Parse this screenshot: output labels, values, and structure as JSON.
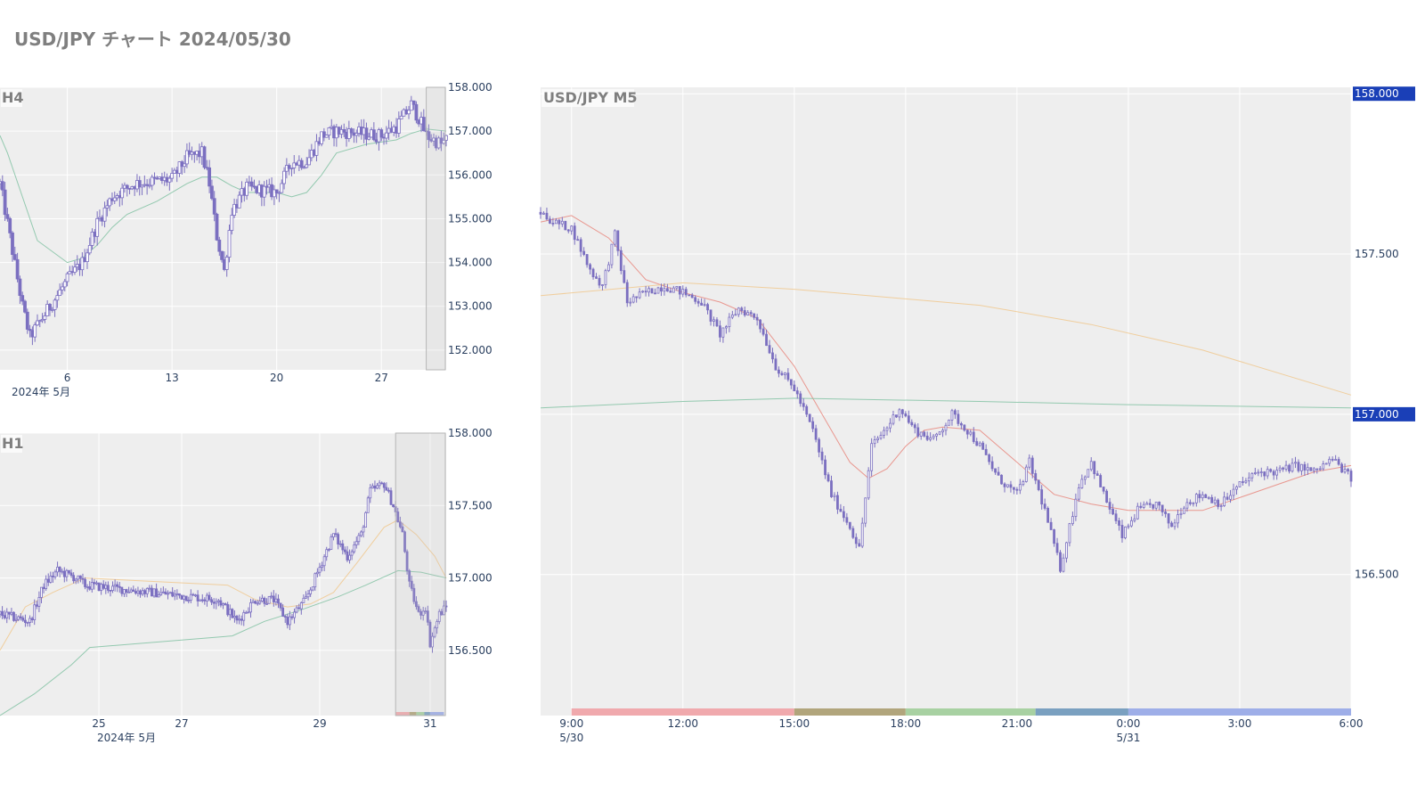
{
  "page": {
    "title": "USD/JPY チャート 2024/05/30"
  },
  "colors": {
    "candle": "#7b6fc0",
    "ma_short": "#e7877e",
    "ma_mid": "#f0c88e",
    "ma_long": "#83c2a3",
    "plot_bg": "#eeeeee",
    "grid": "#ffffff",
    "tick_text": "#2a3f5f",
    "price_tag": "#1a3fb7",
    "sessions": [
      "#f0a9ad",
      "#b1a57c",
      "#a8d1a2",
      "#7aa0c0",
      "#9eaee8"
    ]
  },
  "chart_data": [
    {
      "type": "candlestick",
      "panel_label": "H4",
      "x_range": [
        "2024-05-01T12:00",
        "2024-05-31T08:00"
      ],
      "x_ticks": [
        "6",
        "13",
        "20",
        "27"
      ],
      "x_sublabel": "2024年 5月",
      "y_range": [
        151.55,
        158.0
      ],
      "y_ticks": [
        "152.000",
        "153.000",
        "154.000",
        "155.000",
        "156.000",
        "157.000",
        "158.000"
      ],
      "highlight_range": [
        "2024-05-30T00:00",
        "2024-05-31T08:00"
      ],
      "close_path": [
        [
          "2024-05-01T12:00",
          155.8
        ],
        [
          "2024-05-02T00:00",
          154.9
        ],
        [
          "2024-05-03T00:00",
          153.0
        ],
        [
          "2024-05-03T12:00",
          152.3
        ],
        [
          "2024-05-06T00:00",
          153.6
        ],
        [
          "2024-05-07T00:00",
          154.0
        ],
        [
          "2024-05-08T00:00",
          154.9
        ],
        [
          "2024-05-09T00:00",
          155.5
        ],
        [
          "2024-05-10T12:00",
          155.8
        ],
        [
          "2024-05-13T00:00",
          155.9
        ],
        [
          "2024-05-14T00:00",
          156.4
        ],
        [
          "2024-05-15T00:00",
          156.5
        ],
        [
          "2024-05-15T12:00",
          155.8
        ],
        [
          "2024-05-16T00:00",
          154.6
        ],
        [
          "2024-05-16T12:00",
          153.8
        ],
        [
          "2024-05-17T00:00",
          155.2
        ],
        [
          "2024-05-18T00:00",
          155.7
        ],
        [
          "2024-05-20T00:00",
          155.6
        ],
        [
          "2024-05-21T00:00",
          156.3
        ],
        [
          "2024-05-22T00:00",
          156.3
        ],
        [
          "2024-05-23T00:00",
          156.9
        ],
        [
          "2024-05-24T00:00",
          157.0
        ],
        [
          "2024-05-27T00:00",
          156.9
        ],
        [
          "2024-05-28T00:00",
          157.1
        ],
        [
          "2024-05-29T00:00",
          157.6
        ],
        [
          "2024-05-29T12:00",
          157.3
        ],
        [
          "2024-05-30T00:00",
          156.9
        ],
        [
          "2024-05-31T00:00",
          156.7
        ],
        [
          "2024-05-31T08:00",
          156.8
        ]
      ],
      "ma_lines": [
        {
          "color_key": "ma_long",
          "points": [
            [
              "2024-05-01T12:00",
              156.9
            ],
            [
              "2024-05-02T00:00",
              156.5
            ],
            [
              "2024-05-03T00:00",
              155.5
            ],
            [
              "2024-05-04T00:00",
              154.5
            ],
            [
              "2024-05-06T00:00",
              154.0
            ],
            [
              "2024-05-07T00:00",
              154.1
            ],
            [
              "2024-05-08T00:00",
              154.4
            ],
            [
              "2024-05-09T00:00",
              154.8
            ],
            [
              "2024-05-10T00:00",
              155.1
            ],
            [
              "2024-05-12T00:00",
              155.4
            ],
            [
              "2024-05-14T00:00",
              155.8
            ],
            [
              "2024-05-15T00:00",
              155.95
            ],
            [
              "2024-05-16T00:00",
              155.95
            ],
            [
              "2024-05-17T00:00",
              155.75
            ],
            [
              "2024-05-18T00:00",
              155.6
            ],
            [
              "2024-05-20T00:00",
              155.6
            ],
            [
              "2024-05-21T00:00",
              155.5
            ],
            [
              "2024-05-22T00:00",
              155.6
            ],
            [
              "2024-05-23T00:00",
              156.0
            ],
            [
              "2024-05-24T00:00",
              156.5
            ],
            [
              "2024-05-26T00:00",
              156.7
            ],
            [
              "2024-05-28T00:00",
              156.8
            ],
            [
              "2024-05-29T00:00",
              156.95
            ],
            [
              "2024-05-30T00:00",
              157.05
            ],
            [
              "2024-05-31T08:00",
              157.0
            ]
          ]
        }
      ]
    },
    {
      "type": "candlestick",
      "panel_label": "H1",
      "x_range": [
        "2024-05-23T05:00",
        "2024-05-31T07:00"
      ],
      "x_ticks": [
        "25",
        "27",
        "29",
        "31"
      ],
      "x_sublabel": "2024年 5月",
      "y_range": [
        156.05,
        158.0
      ],
      "y_ticks": [
        "156.500",
        "157.000",
        "157.500",
        "158.000"
      ],
      "highlight_range": [
        "2024-05-30T09:00",
        "2024-05-31T07:00"
      ],
      "close_path": [
        [
          "2024-05-23T05:00",
          156.75
        ],
        [
          "2024-05-23T18:00",
          156.7
        ],
        [
          "2024-05-24T00:00",
          156.95
        ],
        [
          "2024-05-24T06:00",
          157.05
        ],
        [
          "2024-05-24T14:00",
          157.0
        ],
        [
          "2024-05-24T18:00",
          156.95
        ],
        [
          "2024-05-27T04:00",
          156.85
        ],
        [
          "2024-05-27T12:00",
          156.7
        ],
        [
          "2024-05-27T20:00",
          156.85
        ],
        [
          "2024-05-28T04:00",
          156.85
        ],
        [
          "2024-05-28T10:00",
          156.7
        ],
        [
          "2024-05-28T18:00",
          156.85
        ],
        [
          "2024-05-28T22:00",
          157.0
        ],
        [
          "2024-05-29T06:00",
          157.3
        ],
        [
          "2024-05-29T12:00",
          157.15
        ],
        [
          "2024-05-29T18:00",
          157.3
        ],
        [
          "2024-05-29T22:00",
          157.6
        ],
        [
          "2024-05-30T04:00",
          157.65
        ],
        [
          "2024-05-30T08:00",
          157.5
        ],
        [
          "2024-05-30T12:00",
          157.3
        ],
        [
          "2024-05-30T15:00",
          156.95
        ],
        [
          "2024-05-30T19:00",
          156.75
        ],
        [
          "2024-05-30T22:00",
          156.8
        ],
        [
          "2024-05-31T00:00",
          156.55
        ],
        [
          "2024-05-31T04:00",
          156.75
        ],
        [
          "2024-05-31T07:00",
          156.8
        ]
      ],
      "ma_lines": [
        {
          "color_key": "ma_mid",
          "points": [
            [
              "2024-05-23T05:00",
              156.5
            ],
            [
              "2024-05-23T16:00",
              156.8
            ],
            [
              "2024-05-24T04:00",
              156.9
            ],
            [
              "2024-05-24T18:00",
              157.0
            ],
            [
              "2024-05-27T08:00",
              156.95
            ],
            [
              "2024-05-27T20:00",
              156.85
            ],
            [
              "2024-05-28T10:00",
              156.8
            ],
            [
              "2024-05-28T20:00",
              156.82
            ],
            [
              "2024-05-29T06:00",
              156.9
            ],
            [
              "2024-05-29T16:00",
              157.1
            ],
            [
              "2024-05-30T04:00",
              157.35
            ],
            [
              "2024-05-30T10:00",
              157.4
            ],
            [
              "2024-05-30T18:00",
              157.3
            ],
            [
              "2024-05-31T02:00",
              157.15
            ],
            [
              "2024-05-31T07:00",
              157.0
            ]
          ]
        },
        {
          "color_key": "ma_long",
          "points": [
            [
              "2024-05-23T05:00",
              156.05
            ],
            [
              "2024-05-23T20:00",
              156.2
            ],
            [
              "2024-05-24T12:00",
              156.4
            ],
            [
              "2024-05-24T20:00",
              156.52
            ],
            [
              "2024-05-27T10:00",
              156.6
            ],
            [
              "2024-05-28T00:00",
              156.7
            ],
            [
              "2024-05-28T16:00",
              156.78
            ],
            [
              "2024-05-29T08:00",
              156.87
            ],
            [
              "2024-05-29T20:00",
              156.95
            ],
            [
              "2024-05-30T10:00",
              157.05
            ],
            [
              "2024-05-30T20:00",
              157.04
            ],
            [
              "2024-05-31T07:00",
              157.0
            ]
          ]
        }
      ],
      "session_range": [
        "2024-05-30T09:00",
        "2024-05-31T06:00"
      ]
    },
    {
      "type": "candlestick",
      "panel_label": "USD/JPY M5",
      "x_range": [
        "2024-05-30T08:10",
        "2024-05-31T06:00"
      ],
      "x_ticks": [
        "9:00",
        "12:00",
        "15:00",
        "18:00",
        "21:00",
        "0:00",
        "3:00",
        "6:00"
      ],
      "x_subticks": [
        "5/30",
        "5/31"
      ],
      "y_range": [
        156.06,
        158.02
      ],
      "y_ticks": [
        "156.500",
        "157.000",
        "157.500",
        "158.000"
      ],
      "price_tags": [
        "158.000",
        "157.000"
      ],
      "close_path": [
        [
          "2024-05-30T08:10",
          157.63
        ],
        [
          "2024-05-30T08:30",
          157.6
        ],
        [
          "2024-05-30T09:00",
          157.58
        ],
        [
          "2024-05-30T09:30",
          157.45
        ],
        [
          "2024-05-30T09:50",
          157.4
        ],
        [
          "2024-05-30T10:10",
          157.56
        ],
        [
          "2024-05-30T10:30",
          157.35
        ],
        [
          "2024-05-30T11:00",
          157.38
        ],
        [
          "2024-05-30T11:30",
          157.4
        ],
        [
          "2024-05-30T12:00",
          157.38
        ],
        [
          "2024-05-30T12:30",
          157.35
        ],
        [
          "2024-05-30T13:00",
          157.25
        ],
        [
          "2024-05-30T13:30",
          157.33
        ],
        [
          "2024-05-30T14:00",
          157.3
        ],
        [
          "2024-05-30T14:30",
          157.15
        ],
        [
          "2024-05-30T15:00",
          157.08
        ],
        [
          "2024-05-30T15:30",
          156.95
        ],
        [
          "2024-05-30T16:00",
          156.75
        ],
        [
          "2024-05-30T16:30",
          156.65
        ],
        [
          "2024-05-30T16:45",
          156.58
        ],
        [
          "2024-05-30T17:05",
          156.9
        ],
        [
          "2024-05-30T17:30",
          156.96
        ],
        [
          "2024-05-30T17:50",
          157.02
        ],
        [
          "2024-05-30T18:15",
          156.95
        ],
        [
          "2024-05-30T18:45",
          156.92
        ],
        [
          "2024-05-30T19:15",
          157.0
        ],
        [
          "2024-05-30T19:40",
          156.95
        ],
        [
          "2024-05-30T20:00",
          156.9
        ],
        [
          "2024-05-30T20:30",
          156.8
        ],
        [
          "2024-05-30T21:00",
          156.75
        ],
        [
          "2024-05-30T21:20",
          156.85
        ],
        [
          "2024-05-30T21:45",
          156.7
        ],
        [
          "2024-05-30T22:10",
          156.52
        ],
        [
          "2024-05-30T22:40",
          156.78
        ],
        [
          "2024-05-30T23:00",
          156.85
        ],
        [
          "2024-05-30T23:20",
          156.75
        ],
        [
          "2024-05-30T23:50",
          156.62
        ],
        [
          "2024-05-31T00:15",
          156.7
        ],
        [
          "2024-05-31T00:45",
          156.72
        ],
        [
          "2024-05-31T01:10",
          156.65
        ],
        [
          "2024-05-31T01:30",
          156.72
        ],
        [
          "2024-05-31T02:00",
          156.75
        ],
        [
          "2024-05-31T02:30",
          156.72
        ],
        [
          "2024-05-31T03:00",
          156.78
        ],
        [
          "2024-05-31T03:30",
          156.82
        ],
        [
          "2024-05-31T04:00",
          156.82
        ],
        [
          "2024-05-31T04:30",
          156.84
        ],
        [
          "2024-05-31T05:00",
          156.82
        ],
        [
          "2024-05-31T05:30",
          156.86
        ],
        [
          "2024-05-31T06:00",
          156.8
        ]
      ],
      "ma_lines": [
        {
          "color_key": "ma_short",
          "points": [
            [
              "2024-05-30T08:10",
              157.6
            ],
            [
              "2024-05-30T09:00",
              157.62
            ],
            [
              "2024-05-30T10:00",
              157.55
            ],
            [
              "2024-05-30T11:00",
              157.42
            ],
            [
              "2024-05-30T12:00",
              157.38
            ],
            [
              "2024-05-30T13:00",
              157.35
            ],
            [
              "2024-05-30T14:00",
              157.3
            ],
            [
              "2024-05-30T15:00",
              157.15
            ],
            [
              "2024-05-30T16:00",
              156.95
            ],
            [
              "2024-05-30T16:30",
              156.85
            ],
            [
              "2024-05-30T17:00",
              156.8
            ],
            [
              "2024-05-30T17:30",
              156.83
            ],
            [
              "2024-05-30T18:00",
              156.9
            ],
            [
              "2024-05-30T18:30",
              156.95
            ],
            [
              "2024-05-30T19:00",
              156.96
            ],
            [
              "2024-05-30T20:00",
              156.95
            ],
            [
              "2024-05-30T21:00",
              156.85
            ],
            [
              "2024-05-30T22:00",
              156.75
            ],
            [
              "2024-05-30T23:00",
              156.72
            ],
            [
              "2024-05-31T00:00",
              156.7
            ],
            [
              "2024-05-31T01:00",
              156.7
            ],
            [
              "2024-05-31T02:00",
              156.7
            ],
            [
              "2024-05-31T03:00",
              156.74
            ],
            [
              "2024-05-31T04:00",
              156.78
            ],
            [
              "2024-05-31T05:00",
              156.82
            ],
            [
              "2024-05-31T06:00",
              156.84
            ]
          ]
        },
        {
          "color_key": "ma_mid",
          "points": [
            [
              "2024-05-30T08:10",
              157.37
            ],
            [
              "2024-05-30T12:00",
              157.41
            ],
            [
              "2024-05-30T15:00",
              157.39
            ],
            [
              "2024-05-30T18:00",
              157.36
            ],
            [
              "2024-05-30T20:00",
              157.34
            ],
            [
              "2024-05-30T23:00",
              157.28
            ],
            [
              "2024-05-31T02:00",
              157.2
            ],
            [
              "2024-05-31T06:00",
              157.06
            ]
          ]
        },
        {
          "color_key": "ma_long",
          "points": [
            [
              "2024-05-30T08:10",
              157.02
            ],
            [
              "2024-05-30T12:00",
              157.04
            ],
            [
              "2024-05-30T15:00",
              157.05
            ],
            [
              "2024-05-30T20:00",
              157.04
            ],
            [
              "2024-05-31T00:00",
              157.03
            ],
            [
              "2024-05-31T06:00",
              157.02
            ]
          ]
        }
      ],
      "session_range": [
        "2024-05-30T09:00",
        "2024-05-31T06:00"
      ]
    }
  ]
}
